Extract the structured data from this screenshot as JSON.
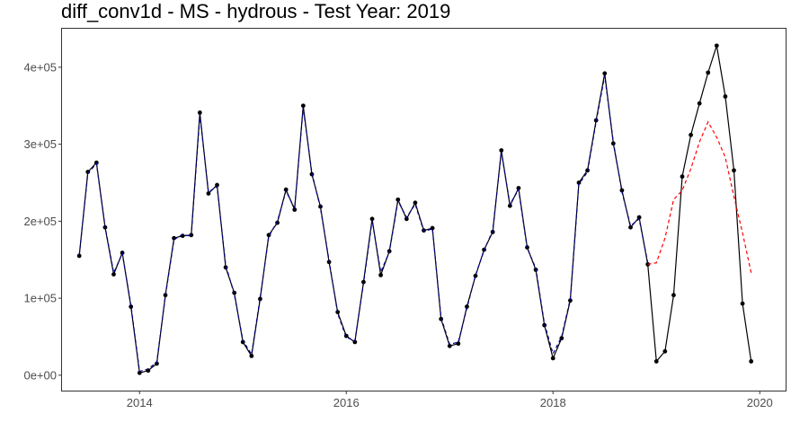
{
  "chart_data": {
    "type": "line",
    "title": "diff_conv1d - MS - hydrous - Test Year: 2019",
    "xlabel": "",
    "ylabel": "",
    "xlim": [
      2013.25,
      2020.25
    ],
    "ylim": [
      -20000,
      450000
    ],
    "x_ticks": [
      2014,
      2016,
      2018,
      2020
    ],
    "x_tick_labels": [
      "2014",
      "2016",
      "2018",
      "2020"
    ],
    "y_ticks": [
      0,
      100000,
      200000,
      300000,
      400000
    ],
    "y_tick_labels": [
      "0e+00",
      "1e+05",
      "2e+05",
      "3e+05",
      "4e+05"
    ],
    "grid": false,
    "legend": "none",
    "series": [
      {
        "role": "observed",
        "style": "solid-with-points",
        "color": "#000000",
        "x": [
          "2013-06",
          "2013-07",
          "2013-08",
          "2013-09",
          "2013-10",
          "2013-11",
          "2013-12",
          "2014-01",
          "2014-02",
          "2014-03",
          "2014-04",
          "2014-05",
          "2014-06",
          "2014-07",
          "2014-08",
          "2014-09",
          "2014-10",
          "2014-11",
          "2014-12",
          "2015-01",
          "2015-02",
          "2015-03",
          "2015-04",
          "2015-05",
          "2015-06",
          "2015-07",
          "2015-08",
          "2015-09",
          "2015-10",
          "2015-11",
          "2015-12",
          "2016-01",
          "2016-02",
          "2016-03",
          "2016-04",
          "2016-05",
          "2016-06",
          "2016-07",
          "2016-08",
          "2016-09",
          "2016-10",
          "2016-11",
          "2016-12",
          "2017-01",
          "2017-02",
          "2017-03",
          "2017-04",
          "2017-05",
          "2017-06",
          "2017-07",
          "2017-08",
          "2017-09",
          "2017-10",
          "2017-11",
          "2017-12",
          "2018-01",
          "2018-02",
          "2018-03",
          "2018-04",
          "2018-05",
          "2018-06",
          "2018-07",
          "2018-08",
          "2018-09",
          "2018-10",
          "2018-11",
          "2018-12",
          "2019-01",
          "2019-02",
          "2019-03",
          "2019-04",
          "2019-05",
          "2019-06",
          "2019-07",
          "2019-08",
          "2019-09",
          "2019-10",
          "2019-11",
          "2019-12"
        ],
        "values": [
          155000,
          264000,
          276000,
          192000,
          131000,
          159000,
          89000,
          3000,
          6000,
          15000,
          104000,
          178000,
          181000,
          182000,
          341000,
          236000,
          247000,
          140000,
          107000,
          43000,
          25000,
          99000,
          182000,
          198000,
          241000,
          215000,
          350000,
          261000,
          219000,
          147000,
          82000,
          51000,
          43000,
          121000,
          203000,
          130000,
          161000,
          228000,
          203000,
          224000,
          188000,
          191000,
          73000,
          38000,
          41000,
          89000,
          129000,
          163000,
          186000,
          292000,
          220000,
          243000,
          166000,
          137000,
          65000,
          22000,
          48000,
          97000,
          250000,
          266000,
          331000,
          392000,
          301000,
          240000,
          192000,
          205000,
          144000,
          18000,
          31000,
          104000,
          258000,
          312000,
          353000,
          393000,
          428000,
          362000,
          266000,
          93000,
          18000
        ]
      },
      {
        "role": "fitted",
        "style": "dashed",
        "color": "#00008b",
        "x": [
          "2013-06",
          "2013-07",
          "2013-08",
          "2013-09",
          "2013-10",
          "2013-11",
          "2013-12",
          "2014-01",
          "2014-02",
          "2014-03",
          "2014-04",
          "2014-05",
          "2014-06",
          "2014-07",
          "2014-08",
          "2014-09",
          "2014-10",
          "2014-11",
          "2014-12",
          "2015-01",
          "2015-02",
          "2015-03",
          "2015-04",
          "2015-05",
          "2015-06",
          "2015-07",
          "2015-08",
          "2015-09",
          "2015-10",
          "2015-11",
          "2015-12",
          "2016-01",
          "2016-02",
          "2016-03",
          "2016-04",
          "2016-05",
          "2016-06",
          "2016-07",
          "2016-08",
          "2016-09",
          "2016-10",
          "2016-11",
          "2016-12",
          "2017-01",
          "2017-02",
          "2017-03",
          "2017-04",
          "2017-05",
          "2017-06",
          "2017-07",
          "2017-08",
          "2017-09",
          "2017-10",
          "2017-11",
          "2017-12",
          "2018-01",
          "2018-02",
          "2018-03",
          "2018-04",
          "2018-05",
          "2018-06",
          "2018-07",
          "2018-08",
          "2018-09",
          "2018-10",
          "2018-11",
          "2018-12"
        ],
        "values": [
          156000,
          262000,
          275000,
          193000,
          133000,
          158000,
          91000,
          5000,
          8000,
          17000,
          103000,
          176000,
          183000,
          180000,
          338000,
          238000,
          245000,
          143000,
          105000,
          45000,
          27000,
          101000,
          180000,
          200000,
          239000,
          217000,
          347000,
          263000,
          217000,
          149000,
          80000,
          49000,
          45000,
          119000,
          201000,
          134000,
          160000,
          226000,
          205000,
          222000,
          187000,
          190000,
          75000,
          40000,
          43000,
          87000,
          130000,
          162000,
          188000,
          290000,
          222000,
          241000,
          165000,
          139000,
          67000,
          28000,
          50000,
          99000,
          248000,
          264000,
          329000,
          389000,
          303000,
          238000,
          194000,
          203000,
          146000
        ]
      },
      {
        "role": "forecast",
        "style": "dashed",
        "color": "#ff0000",
        "x": [
          "2018-12",
          "2019-01",
          "2019-02",
          "2019-03",
          "2019-04",
          "2019-05",
          "2019-06",
          "2019-07",
          "2019-08",
          "2019-09",
          "2019-10",
          "2019-11",
          "2019-12"
        ],
        "values": [
          144000,
          146000,
          178000,
          228000,
          240000,
          268000,
          303000,
          329000,
          309000,
          283000,
          232000,
          185000,
          133000
        ]
      }
    ]
  }
}
